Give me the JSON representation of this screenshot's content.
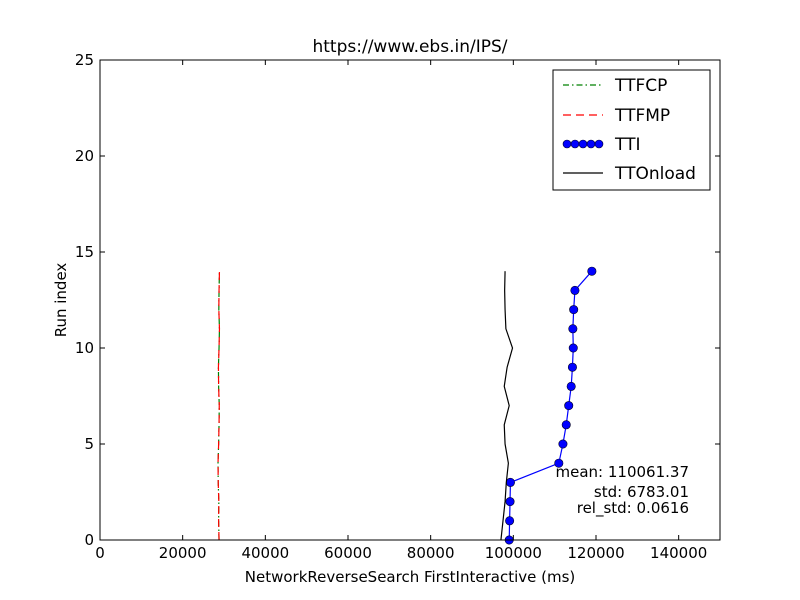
{
  "chart_data": {
    "type": "line",
    "title": "https://www.ebs.in/IPS/",
    "xlabel": "NetworkReverseSearch FirstInteractive (ms)",
    "ylabel": "Run index",
    "xlim": [
      0,
      150000
    ],
    "ylim": [
      0,
      25
    ],
    "xticks": [
      0,
      20000,
      40000,
      60000,
      80000,
      100000,
      120000,
      140000
    ],
    "yticks": [
      0,
      5,
      10,
      15,
      20,
      25
    ],
    "grid": false,
    "legend": "top-right",
    "series": [
      {
        "name": "TTFCP",
        "color": "#008000",
        "style": "dashdot",
        "x": [
          28800,
          28700,
          28750,
          28600,
          28550,
          28700,
          28800,
          28850,
          28700,
          28650,
          28800,
          28900,
          28750,
          28800,
          28900
        ],
        "y": [
          0,
          1,
          2,
          3,
          4,
          5,
          6,
          7,
          8,
          9,
          10,
          11,
          12,
          13,
          14
        ]
      },
      {
        "name": "TTFMP",
        "color": "#ff0000",
        "style": "dashed",
        "x": [
          28800,
          28700,
          28750,
          28600,
          28550,
          28700,
          28800,
          28850,
          28700,
          28650,
          28800,
          28900,
          28750,
          28800,
          28900
        ],
        "y": [
          0,
          1,
          2,
          3,
          4,
          5,
          6,
          7,
          8,
          9,
          10,
          11,
          12,
          13,
          14
        ]
      },
      {
        "name": "TTI",
        "color": "#0000ff",
        "style": "solid-marker",
        "x": [
          99000,
          99100,
          99200,
          99300,
          111000,
          112000,
          112800,
          113400,
          114000,
          114300,
          114500,
          114400,
          114600,
          114900,
          119000
        ],
        "y": [
          0,
          1,
          2,
          3,
          4,
          5,
          6,
          7,
          8,
          9,
          10,
          11,
          12,
          13,
          14
        ]
      },
      {
        "name": "TTOnload",
        "color": "#000000",
        "style": "solid",
        "x": [
          97000,
          97500,
          98000,
          98300,
          98800,
          98000,
          97800,
          99000,
          97800,
          98500,
          99800,
          98200,
          98000,
          97900,
          98000
        ],
        "y": [
          0,
          1,
          2,
          3,
          4,
          5,
          6,
          7,
          8,
          9,
          10,
          11,
          12,
          13,
          14
        ]
      }
    ],
    "annotations": [
      "mean: 110061.37",
      "std: 6783.01",
      "rel_std: 0.0616"
    ]
  }
}
